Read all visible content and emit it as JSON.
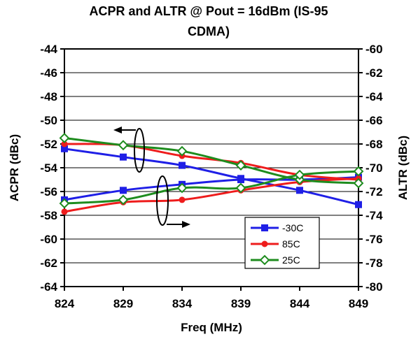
{
  "chart_data": {
    "type": "line",
    "title_line1": "ACPR and ALTR @ Pout = 16dBm (IS-95",
    "title_line2": "CDMA)",
    "xlabel": "Freq (MHz)",
    "ylabel_left": "ACPR (dBc)",
    "ylabel_right": "ALTR (dBc)",
    "x": [
      824,
      829,
      834,
      839,
      844,
      849
    ],
    "x_ticks": [
      "824",
      "829",
      "834",
      "839",
      "844",
      "849"
    ],
    "ylim_left": [
      -64,
      -44
    ],
    "ylim_right": [
      -80,
      -60
    ],
    "y_ticks_left": [
      "-44",
      "-46",
      "-48",
      "-50",
      "-52",
      "-54",
      "-56",
      "-58",
      "-60",
      "-62",
      "-64"
    ],
    "y_ticks_right": [
      "-60",
      "-62",
      "-64",
      "-66",
      "-68",
      "-70",
      "-72",
      "-74",
      "-76",
      "-78",
      "-80"
    ],
    "grid": true,
    "legend_position": "lower-right",
    "series": [
      {
        "name": "-30C",
        "color": "#1f1fe6",
        "marker": "square",
        "axis": "left",
        "values": [
          -52.4,
          -53.1,
          -53.8,
          -54.9,
          -55.9,
          -57.1
        ]
      },
      {
        "name": "-30C",
        "color": "#1f1fe6",
        "marker": "square",
        "axis": "right",
        "values": [
          -72.7,
          -71.9,
          -71.4,
          -71.0,
          -71.0,
          -70.8
        ]
      },
      {
        "name": "85C",
        "color": "#ee1c1c",
        "marker": "circle",
        "axis": "left",
        "values": [
          -52.0,
          -52.1,
          -53.0,
          -53.6,
          -54.6,
          -55.0
        ]
      },
      {
        "name": "85C",
        "color": "#ee1c1c",
        "marker": "circle",
        "axis": "right",
        "values": [
          -73.7,
          -72.9,
          -72.7,
          -71.9,
          -71.2,
          -70.9
        ]
      },
      {
        "name": "25C",
        "color": "#1e8c1e",
        "marker": "diamond",
        "axis": "left",
        "values": [
          -51.5,
          -52.1,
          -52.6,
          -53.8,
          -55.0,
          -55.3
        ]
      },
      {
        "name": "25C",
        "color": "#1e8c1e",
        "marker": "diamond",
        "axis": "right",
        "values": [
          -73.0,
          -72.7,
          -71.7,
          -71.7,
          -70.6,
          -70.3
        ]
      }
    ],
    "legend": [
      {
        "name": "-30C",
        "color": "#1f1fe6",
        "marker": "square"
      },
      {
        "name": "85C",
        "color": "#ee1c1c",
        "marker": "circle"
      },
      {
        "name": "25C",
        "color": "#1e8c1e",
        "marker": "diamond"
      }
    ]
  }
}
